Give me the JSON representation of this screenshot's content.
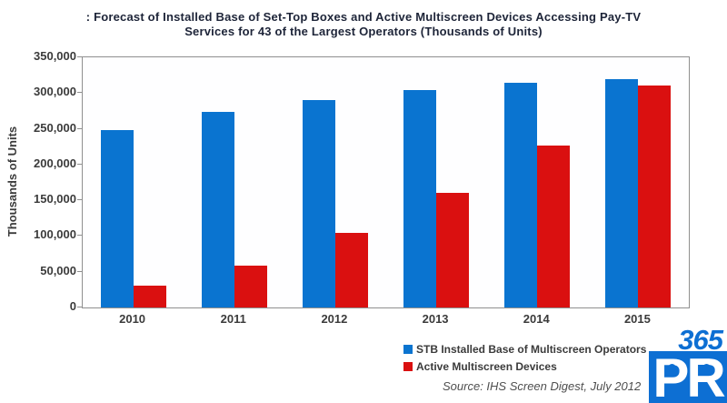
{
  "title": {
    "line1": ": Forecast of Installed Base of Set-Top Boxes and Active Multiscreen Devices Accessing Pay-TV",
    "line2": "Services for 43 of the Largest Operators (Thousands of Units)"
  },
  "chart_data": {
    "type": "bar",
    "title": "Forecast of Installed Base of Set-Top Boxes and Active Multiscreen Devices Accessing Pay-TV Services for 43 of the Largest Operators (Thousands of Units)",
    "categories": [
      "2010",
      "2011",
      "2012",
      "2013",
      "2014",
      "2015"
    ],
    "series": [
      {
        "name": "STB Installed Base of Multiscreen Operators",
        "color": "#0a74d0",
        "values": [
          248000,
          273000,
          290000,
          304000,
          314000,
          320000
        ]
      },
      {
        "name": "Active Multiscreen Devices",
        "color": "#da1010",
        "values": [
          30000,
          58000,
          104000,
          160000,
          226000,
          310000
        ]
      }
    ],
    "xlabel": "",
    "ylabel": "Thousands of Units",
    "ylim": [
      0,
      350000
    ],
    "ytick_step": 50000,
    "ytick_labels": [
      "0",
      "50,000",
      "100,000",
      "150,000",
      "200,000",
      "250,000",
      "300,000",
      "350,000"
    ],
    "grid": false,
    "legend_position": "bottom-right"
  },
  "source": "Source: IHS Screen Digest, July 2012",
  "logo": {
    "number": "365",
    "letters": "PR",
    "color": "#0d6fd3"
  }
}
